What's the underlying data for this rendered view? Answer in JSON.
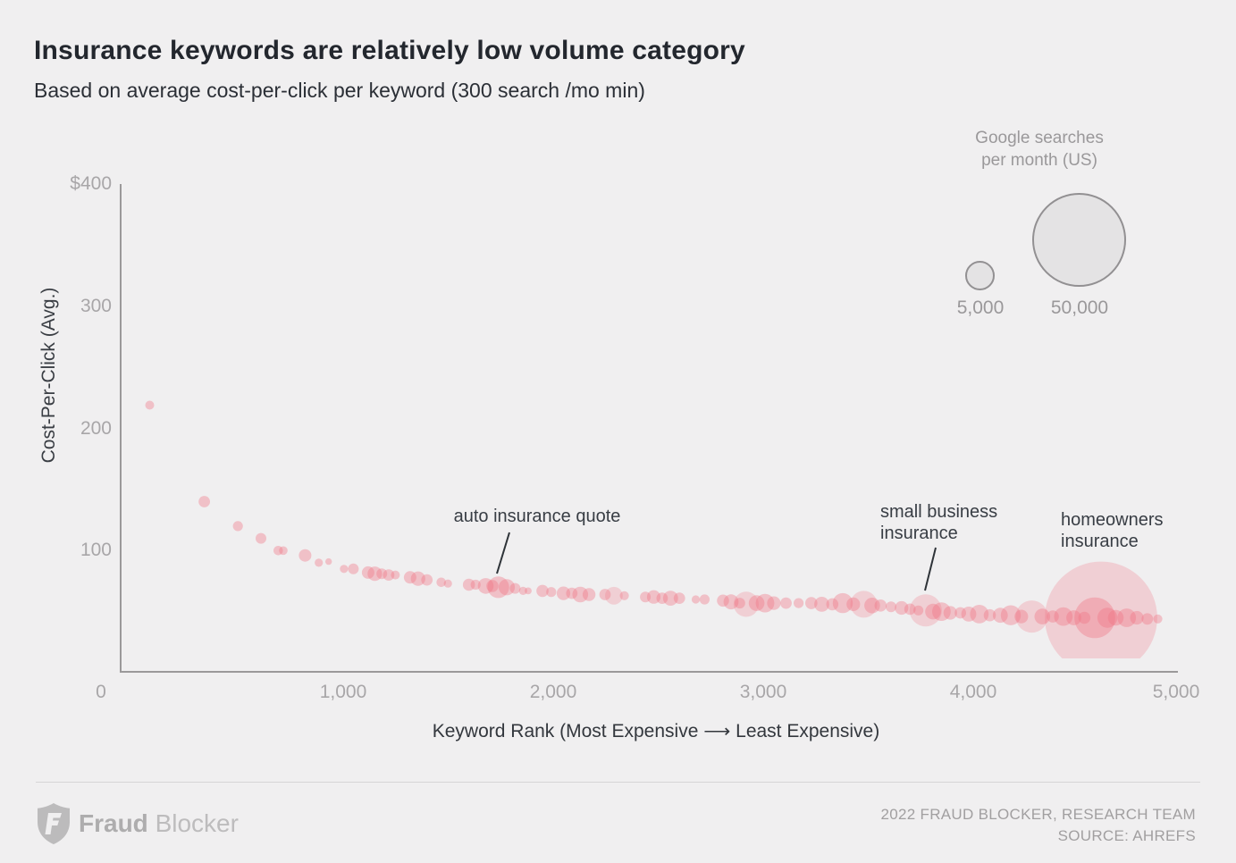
{
  "header": {
    "title": "Insurance keywords are relatively low volume category",
    "subtitle": "Based on average cost-per-click per keyword (300 search /mo min)"
  },
  "legend": {
    "title_line1": "Google searches",
    "title_line2": "per month (US)",
    "small_label": "5,000",
    "large_label": "50,000"
  },
  "footer": {
    "brand_bold": "Fraud",
    "brand_light": "Blocker",
    "credit_line1": "2022 FRAUD BLOCKER, RESEARCH TEAM",
    "credit_line2": "SOURCE: AHREFS"
  },
  "colors": {
    "background": "#f0eff0",
    "dot": "#ef7384",
    "axis": "#9b999a",
    "title_text": "#23272e",
    "muted_text": "#a8a6a8"
  },
  "chart_data": {
    "type": "scatter",
    "title": "Insurance keywords are relatively low volume category",
    "subtitle": "Based on average cost-per-click per keyword (300 search /mo min)",
    "xlabel": "Keyword Rank (Most Expensive  ⟶  Least Expensive)",
    "ylabel": "Cost-Per-Click (Avg.)",
    "xlim": [
      0,
      5000
    ],
    "ylim": [
      0,
      400
    ],
    "grid": false,
    "x_ticks": [
      "0",
      "1,000",
      "2,000",
      "3,000",
      "4,000",
      "5,000"
    ],
    "y_ticks": [
      "$400",
      "300",
      "200",
      "100"
    ],
    "size_legend": {
      "title": "Google searches per month (US)",
      "values": [
        5000,
        50000
      ]
    },
    "point_format": [
      "keyword_rank",
      "cpc_usd",
      "searches_per_month",
      "optional_l_flag_light_bubble"
    ],
    "annotations": [
      {
        "label": "auto insurance quote",
        "rank": 1760,
        "cpc": 70
      },
      {
        "label": "small business insurance",
        "rank": 3795,
        "cpc": 51
      },
      {
        "label": "homeowners insurance",
        "rank": 4630,
        "cpc": 45
      }
    ],
    "points": [
      [
        100,
        219,
        480
      ],
      [
        360,
        140,
        800
      ],
      [
        520,
        120,
        600
      ],
      [
        630,
        110,
        700
      ],
      [
        712,
        100,
        550
      ],
      [
        736,
        100,
        450
      ],
      [
        840,
        96,
        950
      ],
      [
        905,
        90,
        400
      ],
      [
        952,
        91,
        260
      ],
      [
        1025,
        85,
        400
      ],
      [
        1070,
        85,
        700
      ],
      [
        1140,
        82,
        950
      ],
      [
        1172,
        81,
        1250
      ],
      [
        1205,
        81,
        700
      ],
      [
        1238,
        80,
        800
      ],
      [
        1270,
        80,
        480
      ],
      [
        1340,
        78,
        950
      ],
      [
        1378,
        77,
        1250
      ],
      [
        1420,
        76,
        800
      ],
      [
        1488,
        74,
        550
      ],
      [
        1520,
        73,
        400
      ],
      [
        1620,
        72,
        900
      ],
      [
        1652,
        72,
        600
      ],
      [
        1700,
        71,
        1500
      ],
      [
        1732,
        71,
        900
      ],
      [
        1760,
        70,
        2800
      ],
      [
        1800,
        70,
        1600
      ],
      [
        1840,
        69,
        700
      ],
      [
        1878,
        67,
        400
      ],
      [
        1902,
        67,
        300
      ],
      [
        1970,
        67,
        900
      ],
      [
        2012,
        66,
        600
      ],
      [
        2070,
        65,
        1100
      ],
      [
        2110,
        65,
        800
      ],
      [
        2150,
        64,
        1500
      ],
      [
        2192,
        64,
        1000
      ],
      [
        2268,
        64,
        800
      ],
      [
        2310,
        63,
        1900,
        "l"
      ],
      [
        2360,
        63,
        500
      ],
      [
        2460,
        62,
        700
      ],
      [
        2500,
        62,
        1100
      ],
      [
        2540,
        61,
        800
      ],
      [
        2580,
        61,
        1350
      ],
      [
        2622,
        61,
        800
      ],
      [
        2700,
        60,
        400
      ],
      [
        2742,
        60,
        600
      ],
      [
        2830,
        59,
        900
      ],
      [
        2868,
        58,
        1350
      ],
      [
        2910,
        57,
        700
      ],
      [
        2940,
        56,
        3800,
        "l"
      ],
      [
        2990,
        57,
        1500
      ],
      [
        3030,
        57,
        2100
      ],
      [
        3072,
        57,
        1100
      ],
      [
        3130,
        57,
        800
      ],
      [
        3190,
        57,
        600
      ],
      [
        3250,
        57,
        900
      ],
      [
        3300,
        56,
        1350
      ],
      [
        3350,
        56,
        900
      ],
      [
        3400,
        57,
        2400
      ],
      [
        3450,
        56,
        1100
      ],
      [
        3500,
        56,
        4300,
        "l"
      ],
      [
        3540,
        55,
        1500
      ],
      [
        3580,
        55,
        900
      ],
      [
        3630,
        54,
        700
      ],
      [
        3680,
        53,
        1100
      ],
      [
        3720,
        52,
        800
      ],
      [
        3760,
        51,
        600
      ],
      [
        3795,
        51,
        6200,
        "l"
      ],
      [
        3830,
        50,
        1500
      ],
      [
        3870,
        50,
        2100
      ],
      [
        3912,
        49,
        1100
      ],
      [
        3960,
        49,
        800
      ],
      [
        4000,
        48,
        1350
      ],
      [
        4050,
        48,
        2100
      ],
      [
        4100,
        47,
        900
      ],
      [
        4150,
        47,
        1350
      ],
      [
        4200,
        47,
        2400
      ],
      [
        4250,
        46,
        1100
      ],
      [
        4300,
        46,
        6200,
        "l"
      ],
      [
        4350,
        46,
        1500
      ],
      [
        4400,
        46,
        900
      ],
      [
        4450,
        46,
        2100
      ],
      [
        4500,
        45,
        1350
      ],
      [
        4550,
        45,
        900
      ],
      [
        4630,
        45,
        76000,
        "l"
      ],
      [
        4600,
        45,
        10000
      ],
      [
        4660,
        45,
        2400
      ],
      [
        4700,
        45,
        1500
      ],
      [
        4752,
        45,
        2100
      ],
      [
        4800,
        45,
        1100
      ],
      [
        4850,
        44,
        800
      ],
      [
        4900,
        44,
        500
      ]
    ]
  }
}
